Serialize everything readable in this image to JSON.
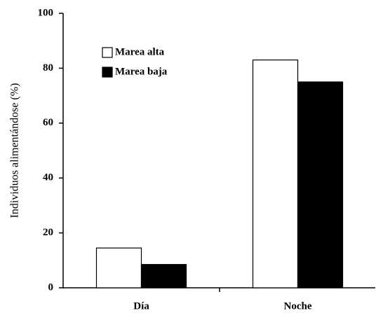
{
  "chart_data": {
    "type": "bar",
    "y_label": "Individuos alimentándose (%)",
    "categories": [
      "Día",
      "Noche"
    ],
    "series": [
      {
        "name": "Marea alta",
        "color": "#ffffff",
        "values": [
          14.5,
          83
        ]
      },
      {
        "name": "Marea baja",
        "color": "#000000",
        "values": [
          8.5,
          75
        ]
      }
    ],
    "ylim": [
      0,
      100
    ],
    "yticks": [
      0,
      20,
      40,
      60,
      80,
      100
    ],
    "grid": false,
    "legend": "upper left"
  }
}
